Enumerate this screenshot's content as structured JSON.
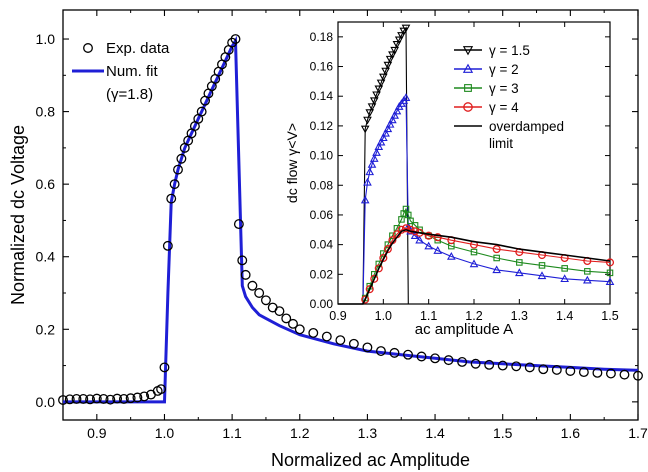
{
  "chart_data": [
    {
      "type": "scatter",
      "xlabel": "Normalized ac Amplitude",
      "ylabel": "Normalized dc Voltage",
      "xlim": [
        0.85,
        1.7
      ],
      "ylim": [
        -0.05,
        1.08
      ],
      "xticks": [
        "0.9",
        "1.0",
        "1.1",
        "1.2",
        "1.3",
        "1.4",
        "1.5",
        "1.6",
        "1.7"
      ],
      "yticks": [
        "0.0",
        "0.2",
        "0.4",
        "0.6",
        "0.8",
        "1.0"
      ],
      "legend": [
        "Exp. data",
        "Num. fit",
        "(γ=1.8)"
      ],
      "legend_position": "top-left",
      "series": [
        {
          "name": "Exp. data",
          "marker": "open-circle",
          "color": "#000000",
          "x": [
            0.85,
            0.86,
            0.87,
            0.88,
            0.89,
            0.9,
            0.91,
            0.92,
            0.93,
            0.94,
            0.95,
            0.96,
            0.97,
            0.98,
            0.99,
            0.995,
            1.0,
            1.005,
            1.01,
            1.015,
            1.02,
            1.025,
            1.03,
            1.035,
            1.04,
            1.045,
            1.05,
            1.055,
            1.06,
            1.065,
            1.07,
            1.075,
            1.08,
            1.085,
            1.09,
            1.095,
            1.1,
            1.105,
            1.11,
            1.115,
            1.12,
            1.13,
            1.14,
            1.15,
            1.16,
            1.17,
            1.18,
            1.19,
            1.2,
            1.22,
            1.24,
            1.26,
            1.28,
            1.3,
            1.32,
            1.34,
            1.36,
            1.38,
            1.4,
            1.42,
            1.44,
            1.46,
            1.48,
            1.5,
            1.52,
            1.54,
            1.56,
            1.58,
            1.6,
            1.62,
            1.64,
            1.66,
            1.68,
            1.7
          ],
          "y": [
            0.005,
            0.007,
            0.008,
            0.008,
            0.007,
            0.009,
            0.008,
            0.006,
            0.009,
            0.008,
            0.01,
            0.012,
            0.015,
            0.02,
            0.03,
            0.035,
            0.095,
            0.43,
            0.56,
            0.6,
            0.64,
            0.67,
            0.7,
            0.72,
            0.74,
            0.76,
            0.78,
            0.8,
            0.83,
            0.85,
            0.87,
            0.89,
            0.91,
            0.93,
            0.95,
            0.97,
            0.99,
            1.0,
            0.49,
            0.39,
            0.35,
            0.32,
            0.3,
            0.28,
            0.26,
            0.25,
            0.23,
            0.215,
            0.2,
            0.19,
            0.18,
            0.17,
            0.16,
            0.15,
            0.14,
            0.135,
            0.13,
            0.125,
            0.12,
            0.115,
            0.11,
            0.105,
            0.102,
            0.1,
            0.098,
            0.095,
            0.09,
            0.088,
            0.085,
            0.082,
            0.08,
            0.078,
            0.075,
            0.072
          ]
        },
        {
          "name": "Num. fit",
          "marker": "line",
          "color": "#1f1fd6",
          "x": [
            0.85,
            0.99,
            1.0,
            1.005,
            1.01,
            1.015,
            1.02,
            1.03,
            1.04,
            1.05,
            1.06,
            1.07,
            1.08,
            1.09,
            1.1,
            1.105,
            1.115,
            1.12,
            1.13,
            1.14,
            1.15,
            1.17,
            1.2,
            1.25,
            1.3,
            1.35,
            1.4,
            1.45,
            1.5,
            1.55,
            1.6,
            1.65,
            1.7
          ],
          "y": [
            0.0,
            0.0,
            0.0,
            0.3,
            0.55,
            0.6,
            0.64,
            0.7,
            0.74,
            0.78,
            0.82,
            0.86,
            0.9,
            0.94,
            0.98,
            0.995,
            0.32,
            0.29,
            0.26,
            0.24,
            0.23,
            0.21,
            0.185,
            0.16,
            0.14,
            0.13,
            0.12,
            0.11,
            0.105,
            0.1,
            0.095,
            0.09,
            0.087
          ]
        }
      ]
    },
    {
      "type": "line",
      "xlabel": "ac amplitude A",
      "ylabel": "dc flow γ<V>",
      "xlim": [
        0.9,
        1.5
      ],
      "ylim": [
        0.0,
        0.19
      ],
      "xticks": [
        "0.9",
        "1.0",
        "1.1",
        "1.2",
        "1.3",
        "1.4",
        "1.5"
      ],
      "yticks": [
        "0.00",
        "0.02",
        "0.04",
        "0.06",
        "0.08",
        "0.10",
        "0.12",
        "0.14",
        "0.16",
        "0.18"
      ],
      "legend_position": "top-right",
      "series": [
        {
          "name": "γ = 1.5",
          "marker": "down-triangle",
          "color": "#000000",
          "x": [
            0.9,
            0.91,
            0.92,
            0.93,
            0.94,
            0.95,
            0.955,
            0.96,
            0.965,
            0.97,
            0.975,
            0.98,
            0.985,
            0.99,
            0.995,
            1.0,
            1.005,
            1.01,
            1.015,
            1.02,
            1.025,
            1.03,
            1.035,
            1.04,
            1.045,
            1.05,
            1.055
          ],
          "y": [
            0.0,
            0.0,
            0.0,
            0.0,
            0.0,
            0.0,
            0.0,
            0.118,
            0.124,
            0.129,
            0.133,
            0.137,
            0.141,
            0.145,
            0.149,
            0.153,
            0.157,
            0.161,
            0.165,
            0.168,
            0.171,
            0.175,
            0.178,
            0.181,
            0.184,
            0.186,
            0.0
          ]
        },
        {
          "name": "γ = 2",
          "marker": "up-triangle",
          "color": "#1f1fd6",
          "x": [
            0.9,
            0.92,
            0.94,
            0.955,
            0.96,
            0.965,
            0.97,
            0.975,
            0.98,
            0.985,
            0.99,
            0.995,
            1.0,
            1.005,
            1.01,
            1.015,
            1.02,
            1.025,
            1.03,
            1.035,
            1.04,
            1.045,
            1.05,
            1.055,
            1.06,
            1.07,
            1.08,
            1.1,
            1.12,
            1.15,
            1.2,
            1.25,
            1.3,
            1.35,
            1.4,
            1.45,
            1.5
          ],
          "y": [
            0.0,
            0.0,
            0.0,
            0.0,
            0.07,
            0.082,
            0.089,
            0.094,
            0.098,
            0.102,
            0.106,
            0.109,
            0.112,
            0.115,
            0.118,
            0.121,
            0.124,
            0.127,
            0.13,
            0.133,
            0.135,
            0.137,
            0.139,
            0.052,
            0.049,
            0.046,
            0.043,
            0.039,
            0.036,
            0.032,
            0.027,
            0.023,
            0.021,
            0.019,
            0.017,
            0.016,
            0.015
          ]
        },
        {
          "name": "γ = 3",
          "marker": "square",
          "color": "#1e8a1e",
          "x": [
            0.9,
            0.92,
            0.94,
            0.955,
            0.96,
            0.97,
            0.98,
            0.99,
            1.0,
            1.01,
            1.02,
            1.03,
            1.04,
            1.045,
            1.05,
            1.055,
            1.06,
            1.07,
            1.08,
            1.1,
            1.12,
            1.15,
            1.2,
            1.25,
            1.3,
            1.35,
            1.4,
            1.45,
            1.5
          ],
          "y": [
            0.0,
            0.0,
            0.0,
            0.0,
            0.004,
            0.012,
            0.02,
            0.027,
            0.034,
            0.04,
            0.046,
            0.051,
            0.057,
            0.061,
            0.064,
            0.06,
            0.056,
            0.053,
            0.05,
            0.046,
            0.043,
            0.039,
            0.035,
            0.031,
            0.028,
            0.026,
            0.024,
            0.022,
            0.021
          ]
        },
        {
          "name": "γ = 4",
          "marker": "open-circle",
          "color": "#e01e1e",
          "x": [
            0.9,
            0.92,
            0.94,
            0.955,
            0.96,
            0.97,
            0.98,
            0.99,
            1.0,
            1.01,
            1.02,
            1.03,
            1.04,
            1.05,
            1.06,
            1.07,
            1.08,
            1.1,
            1.12,
            1.15,
            1.2,
            1.25,
            1.3,
            1.35,
            1.4,
            1.45,
            1.5
          ],
          "y": [
            0.0,
            0.0,
            0.0,
            0.0,
            0.003,
            0.01,
            0.017,
            0.024,
            0.031,
            0.037,
            0.043,
            0.047,
            0.05,
            0.051,
            0.05,
            0.049,
            0.048,
            0.046,
            0.045,
            0.043,
            0.04,
            0.037,
            0.035,
            0.033,
            0.031,
            0.029,
            0.028
          ]
        },
        {
          "name": "overdamped limit",
          "legend_lines": [
            "overdamped",
            "limit"
          ],
          "marker": "line",
          "color": "#000000",
          "x": [
            0.9,
            0.955,
            0.96,
            0.97,
            0.98,
            0.99,
            1.0,
            1.01,
            1.02,
            1.03,
            1.04,
            1.05,
            1.06,
            1.08,
            1.1,
            1.15,
            1.2,
            1.25,
            1.3,
            1.35,
            1.4,
            1.45,
            1.5
          ],
          "y": [
            0.0,
            0.0,
            0.003,
            0.01,
            0.017,
            0.024,
            0.03,
            0.036,
            0.041,
            0.045,
            0.049,
            0.05,
            0.049,
            0.048,
            0.047,
            0.045,
            0.042,
            0.04,
            0.037,
            0.035,
            0.033,
            0.031,
            0.029
          ]
        }
      ]
    }
  ]
}
